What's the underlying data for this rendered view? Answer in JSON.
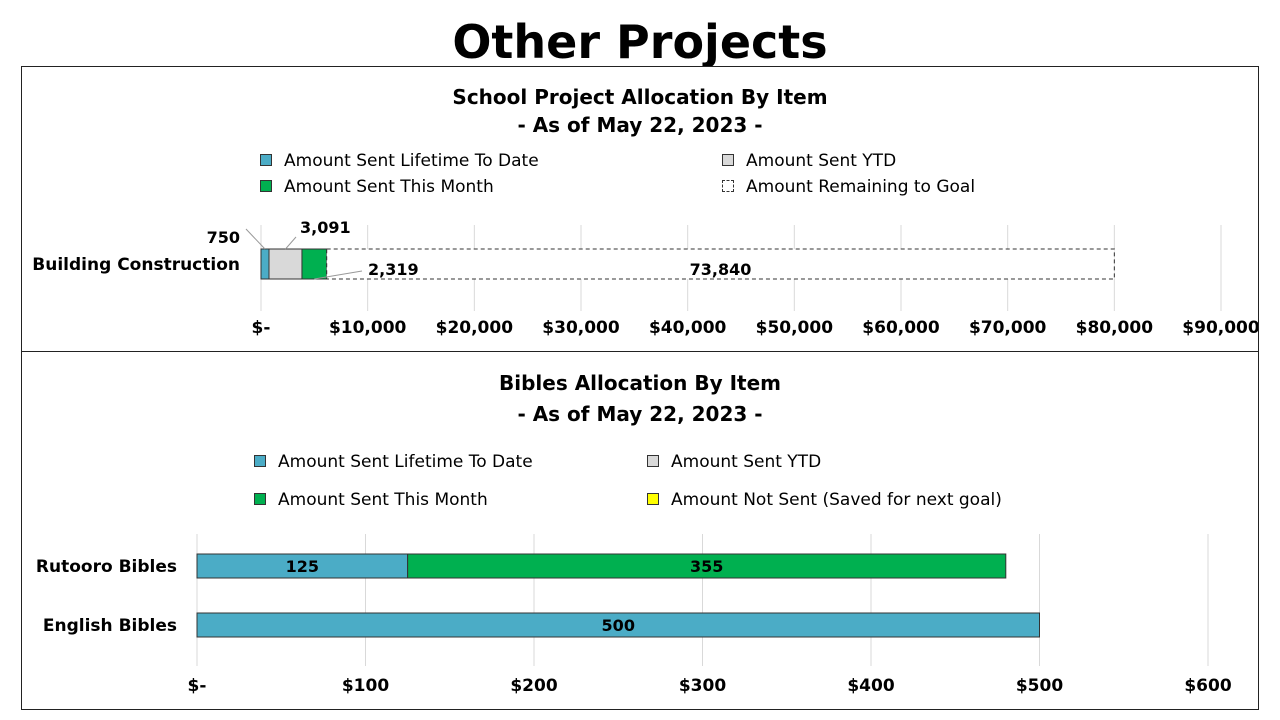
{
  "page": {
    "title": "Other Projects"
  },
  "colors": {
    "lifetime": "#4BACC6",
    "ytd": "#D9D9D9",
    "month": "#00B050",
    "remaining": "#FFFFFF",
    "not_sent": "#FFFF00",
    "grid": "#D9D9D9"
  },
  "chart_data": [
    {
      "type": "bar",
      "orientation": "horizontal",
      "stacked": true,
      "title": "School Project Allocation By Item",
      "subtitle": "- As of May 22, 2023 -",
      "categories": [
        "Building Construction"
      ],
      "series": [
        {
          "name": "Amount Sent Lifetime To Date",
          "values": [
            750
          ],
          "labels": [
            "750"
          ]
        },
        {
          "name": "Amount Sent YTD",
          "values": [
            3091
          ],
          "labels": [
            "3,091"
          ]
        },
        {
          "name": "Amount Sent This Month",
          "values": [
            2319
          ],
          "labels": [
            "2,319"
          ]
        },
        {
          "name": "Amount Remaining to Goal",
          "values": [
            73840
          ],
          "labels": [
            "73,840"
          ]
        }
      ],
      "xlim": [
        0,
        90000
      ],
      "ticks": [
        0,
        10000,
        20000,
        30000,
        40000,
        50000,
        60000,
        70000,
        80000,
        90000
      ],
      "tick_labels": [
        "$-",
        "$10,000",
        "$20,000",
        "$30,000",
        "$40,000",
        "$50,000",
        "$60,000",
        "$70,000",
        "$80,000",
        "$90,000"
      ],
      "legend_placement": "top",
      "grid": true
    },
    {
      "type": "bar",
      "orientation": "horizontal",
      "stacked": true,
      "title": "Bibles Allocation By Item",
      "subtitle": "- As of May 22, 2023 -",
      "categories": [
        "Rutooro Bibles",
        "English Bibles"
      ],
      "series": [
        {
          "name": "Amount Sent Lifetime To Date",
          "values": [
            125,
            500
          ],
          "labels": [
            "125",
            "500"
          ]
        },
        {
          "name": "Amount Sent YTD",
          "values": [
            0,
            0
          ],
          "labels": [
            "",
            ""
          ]
        },
        {
          "name": "Amount Sent This Month",
          "values": [
            355,
            0
          ],
          "labels": [
            "355",
            ""
          ]
        },
        {
          "name": "Amount Not Sent (Saved for next goal)",
          "values": [
            0,
            0
          ],
          "labels": [
            "",
            ""
          ]
        }
      ],
      "xlim": [
        0,
        600
      ],
      "ticks": [
        0,
        100,
        200,
        300,
        400,
        500,
        600
      ],
      "tick_labels": [
        "$-",
        "$100",
        "$200",
        "$300",
        "$400",
        "$500",
        "$600"
      ],
      "legend_placement": "top",
      "grid": true
    }
  ]
}
